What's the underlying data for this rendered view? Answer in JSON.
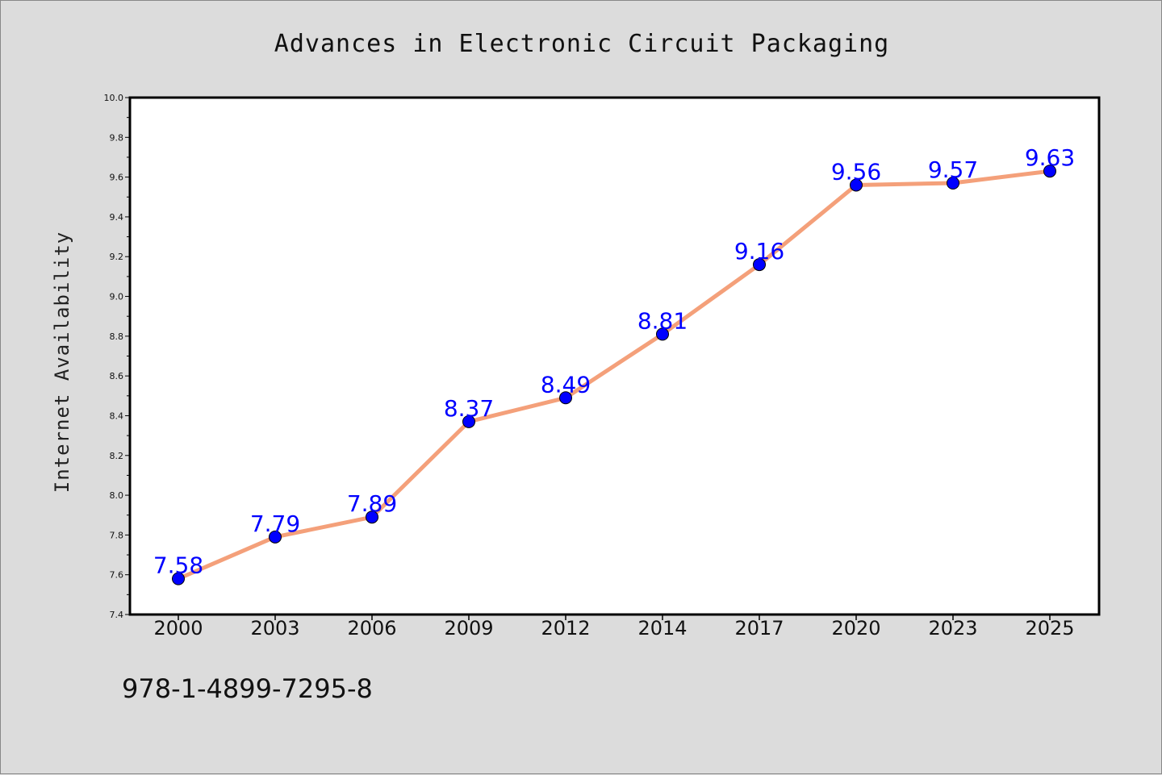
{
  "figure": {
    "isbn": "978-1-4899-7295-8",
    "background": "#dcdcdc"
  },
  "chart_data": {
    "type": "line",
    "title": "Advances in Electronic Circuit Packaging",
    "xlabel": "",
    "ylabel": "Internet Availability",
    "categories": [
      "2000",
      "2003",
      "2006",
      "2009",
      "2012",
      "2014",
      "2017",
      "2020",
      "2023",
      "2025"
    ],
    "series": [
      {
        "values": [
          7.58,
          7.79,
          7.89,
          8.37,
          8.49,
          8.81,
          9.16,
          9.56,
          9.57,
          9.63
        ]
      }
    ],
    "data_labels": [
      "7.58",
      "7.79",
      "7.89",
      "8.37",
      "8.49",
      "8.81",
      "9.16",
      "9.56",
      "9.57",
      "9.63"
    ],
    "ylim": [
      7.4,
      10.0
    ],
    "y_ticks": [
      "7.4",
      "7.6",
      "7.8",
      "8.0",
      "8.2",
      "8.4",
      "8.6",
      "8.8",
      "9.0",
      "9.2",
      "9.4",
      "9.6",
      "9.8",
      "10.0"
    ],
    "grid": false,
    "legend": "none",
    "colors": {
      "line": "#f4a07a",
      "marker": "#0000ff",
      "data_label": "#0000ff",
      "plot_background": "#ffffff",
      "axis": "#000000"
    }
  }
}
